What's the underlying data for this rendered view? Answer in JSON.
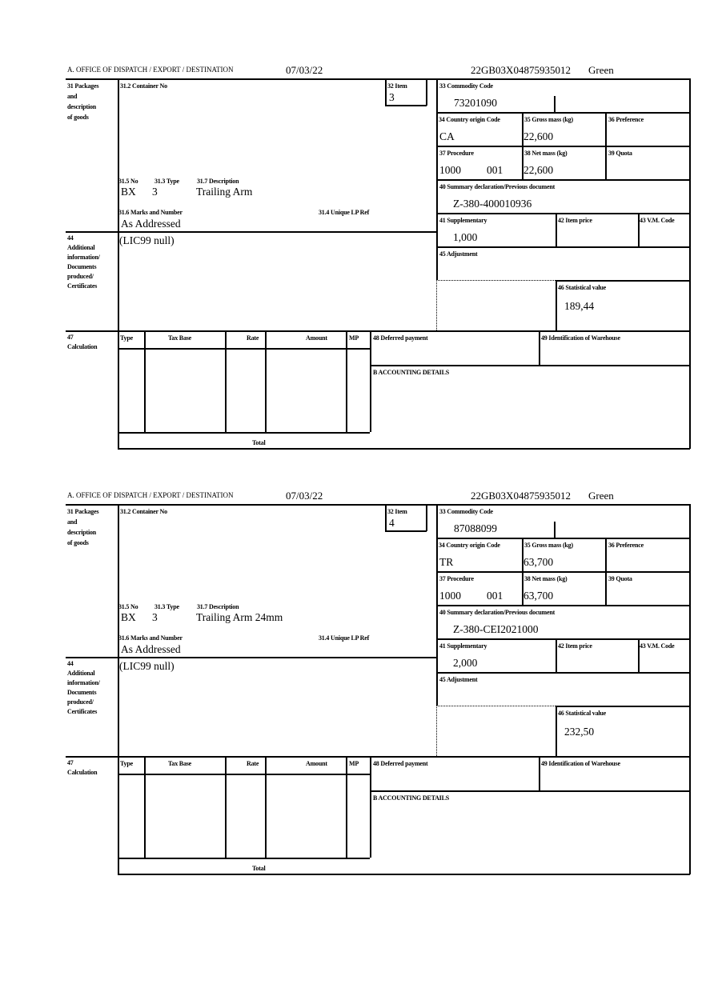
{
  "labels": {
    "office": "A. OFFICE OF DISPATCH / EXPORT / DESTINATION",
    "packages": [
      "31 Packages",
      "and",
      "description",
      "of goods"
    ],
    "container_no": "31.2 Container No",
    "item": "32 Item",
    "commodity_code": "33 Commodity Code",
    "country_origin": "34 Country origin Code",
    "gross_mass": "35 Gross mass (kg)",
    "preference": "36 Preference",
    "procedure": "37 Procedure",
    "net_mass": "38 Net mass (kg)",
    "quota": "39 Quota",
    "summary_doc": "40 Summary declaration/Previous document",
    "supplementary": "41 Supplementary",
    "item_price": "42 Item price",
    "vm_code": "43 V.M. Code",
    "adjustment": "45 Adjustment",
    "stat_value": "46 Statistical value",
    "no": "31.5 No",
    "type": "31.3 Type",
    "description": "31.7 Description",
    "marks": "31.6 Marks and Number",
    "unique_ref": "31.4 Unique LP Ref",
    "additional": [
      "44",
      "Additional",
      "information/",
      "Documents",
      "produced/",
      "Certificates"
    ],
    "calculation": [
      "47",
      "Calculation"
    ],
    "calc_headers": [
      "Type",
      "Tax Base",
      "Rate",
      "Amount",
      "MP"
    ],
    "total": "Total",
    "deferred": "48 Deferred payment",
    "warehouse": "49 Identification of Warehouse",
    "accounting": "B ACCOUNTING DETAILS"
  },
  "forms": [
    {
      "date": "07/03/22",
      "reference": "22GB03X04875935012",
      "status": "Green",
      "item": "3",
      "commodity_code": "73201090",
      "country_origin": "CA",
      "gross_mass": "22,600",
      "procedure": "1000",
      "procedure_suffix": "001",
      "net_mass": "22,600",
      "summary_doc": "Z-380-400010936",
      "supplementary": "1,000",
      "stat_value": "189,44",
      "no": "BX",
      "type": "3",
      "description": "Trailing Arm",
      "marks": "As Addressed",
      "additional_info": "(LIC99 null)"
    },
    {
      "date": "07/03/22",
      "reference": "22GB03X04875935012",
      "status": "Green",
      "item": "4",
      "commodity_code": "87088099",
      "country_origin": "TR",
      "gross_mass": "63,700",
      "procedure": "1000",
      "procedure_suffix": "001",
      "net_mass": "63,700",
      "summary_doc": "Z-380-CEI2021000",
      "supplementary": "2,000",
      "stat_value": "232,50",
      "no": "BX",
      "type": "3",
      "description": "Trailing Arm 24mm",
      "marks": "As Addressed",
      "additional_info": "(LIC99 null)"
    }
  ]
}
